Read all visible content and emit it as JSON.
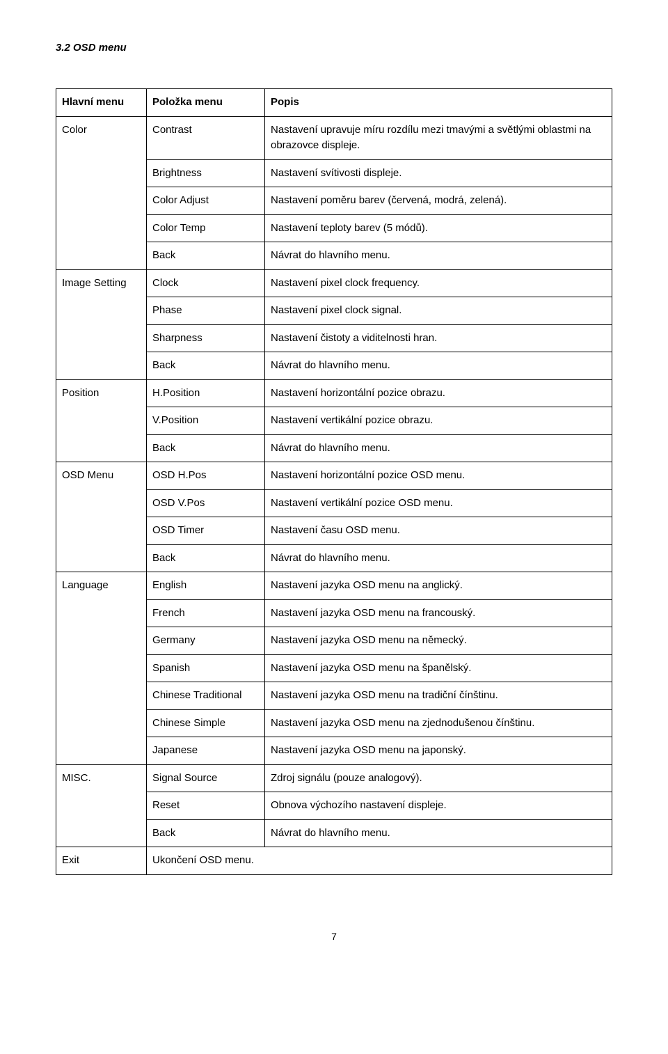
{
  "section_title": "3.2 OSD menu",
  "headers": {
    "c1": "Hlavní menu",
    "c2": "Položka menu",
    "c3": "Popis"
  },
  "groups": [
    {
      "main": "Color",
      "rows": [
        {
          "item": "Contrast",
          "desc": "Nastavení upravuje míru rozdílu mezi tmavými a světlými oblastmi na obrazovce displeje."
        },
        {
          "item": "Brightness",
          "desc": "Nastavení svítivosti displeje."
        },
        {
          "item": "Color Adjust",
          "desc": "Nastavení poměru barev (červená, modrá, zelená)."
        },
        {
          "item": "Color Temp",
          "desc": "Nastavení teploty barev (5 módů)."
        },
        {
          "item": "Back",
          "desc": "Návrat do hlavního menu."
        }
      ]
    },
    {
      "main": "Image Setting",
      "rows": [
        {
          "item": "Clock",
          "desc": "Nastavení pixel clock frequency."
        },
        {
          "item": "Phase",
          "desc": "Nastavení pixel clock signal."
        },
        {
          "item": "Sharpness",
          "desc": "Nastavení čistoty   a viditelnosti hran."
        },
        {
          "item": "Back",
          "desc": "Návrat do hlavního menu."
        }
      ]
    },
    {
      "main": "Position",
      "rows": [
        {
          "item": "H.Position",
          "desc": "Nastavení horizontální pozice obrazu."
        },
        {
          "item": "V.Position",
          "desc": "Nastavení vertikální pozice obrazu."
        },
        {
          "item": "Back",
          "desc": "Návrat do hlavního menu."
        }
      ]
    },
    {
      "main": "OSD Menu",
      "rows": [
        {
          "item": "OSD H.Pos",
          "desc": "Nastavení horizontální pozice OSD menu."
        },
        {
          "item": "OSD V.Pos",
          "desc": "Nastavení vertikální pozice OSD menu."
        },
        {
          "item": "OSD Timer",
          "desc": "Nastavení času OSD menu."
        },
        {
          "item": "Back",
          "desc": "Návrat do hlavního menu."
        }
      ]
    },
    {
      "main": "Language",
      "rows": [
        {
          "item": "English",
          "desc": "Nastavení jazyka OSD menu na anglický."
        },
        {
          "item": "French",
          "desc": "Nastavení jazyka OSD menu na francouský."
        },
        {
          "item": "Germany",
          "desc": "Nastavení jazyka OSD menu na německý."
        },
        {
          "item": "Spanish",
          "desc": "Nastavení jazyka OSD menu na španělský."
        },
        {
          "item": "Chinese Traditional",
          "desc": "Nastavení jazyka OSD menu na tradiční čínštinu."
        },
        {
          "item": "Chinese Simple",
          "desc": "Nastavení jazyka OSD menu na zjednodušenou čínštinu."
        },
        {
          "item": "Japanese",
          "desc": "Nastavení jazyka OSD menu na japonský."
        }
      ]
    },
    {
      "main": "MISC.",
      "rows": [
        {
          "item": "Signal Source",
          "desc": "Zdroj signálu (pouze analogový)."
        },
        {
          "item": "Reset",
          "desc": "Obnova výchozího nastavení displeje."
        },
        {
          "item": "Back",
          "desc": "Návrat do hlavního menu."
        }
      ]
    },
    {
      "main": "Exit",
      "rows": [
        {
          "item_colspan": true,
          "item": "Ukončení OSD menu."
        }
      ]
    }
  ],
  "page_number": "7"
}
